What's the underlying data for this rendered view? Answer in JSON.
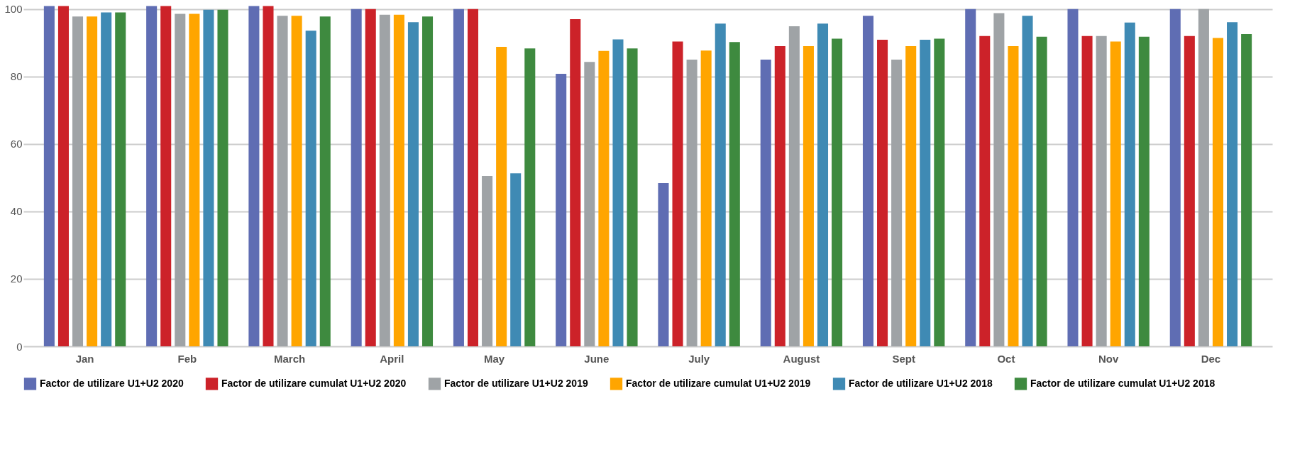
{
  "chart_data": {
    "type": "bar",
    "categories": [
      "Jan",
      "Feb",
      "March",
      "April",
      "May",
      "June",
      "July",
      "August",
      "Sept",
      "Oct",
      "Nov",
      "Dec"
    ],
    "series": [
      {
        "name": "Factor de utilizare U1+U2 2020",
        "color": "#5f6db3",
        "values": [
          100.9,
          100.9,
          100.9,
          100,
          100,
          80.8,
          48.4,
          85.0,
          98.0,
          100,
          100,
          100
        ]
      },
      {
        "name": "Factor de utilizare cumulat U1+U2 2020",
        "color": "#cc2229",
        "values": [
          100.9,
          100.9,
          100.9,
          100,
          100,
          97.0,
          90.4,
          89.0,
          90.9,
          92.0,
          92.0,
          92.0
        ]
      },
      {
        "name": "Factor de utilizare U1+U2 2019",
        "color": "#9fa3a6",
        "values": [
          97.8,
          98.6,
          98.0,
          98.3,
          50.5,
          84.3,
          85.0,
          94.9,
          85.0,
          98.8,
          92.0,
          100
        ]
      },
      {
        "name": "Factor de utilizare cumulat U1+U2 2019",
        "color": "#ffa500",
        "values": [
          97.8,
          98.6,
          98.0,
          98.3,
          88.8,
          87.6,
          87.7,
          89.0,
          89.0,
          89.0,
          90.4,
          91.4
        ]
      },
      {
        "name": "Factor de utilizare U1+U2 2018",
        "color": "#3f8ab4",
        "values": [
          99.0,
          99.8,
          93.6,
          96.1,
          51.3,
          91.0,
          95.7,
          95.7,
          90.9,
          98.0,
          96.0,
          96.1
        ]
      },
      {
        "name": "Factor de utilizare cumulat U1+U2 2018",
        "color": "#3e8a3f",
        "values": [
          99.0,
          99.8,
          97.8,
          97.8,
          88.3,
          88.3,
          90.2,
          91.2,
          91.2,
          91.8,
          91.8,
          92.6
        ]
      }
    ],
    "ylim": [
      0,
      101
    ],
    "yticks": [
      0,
      20,
      40,
      60,
      80,
      100
    ],
    "grid": "y",
    "legend": "bottom"
  }
}
